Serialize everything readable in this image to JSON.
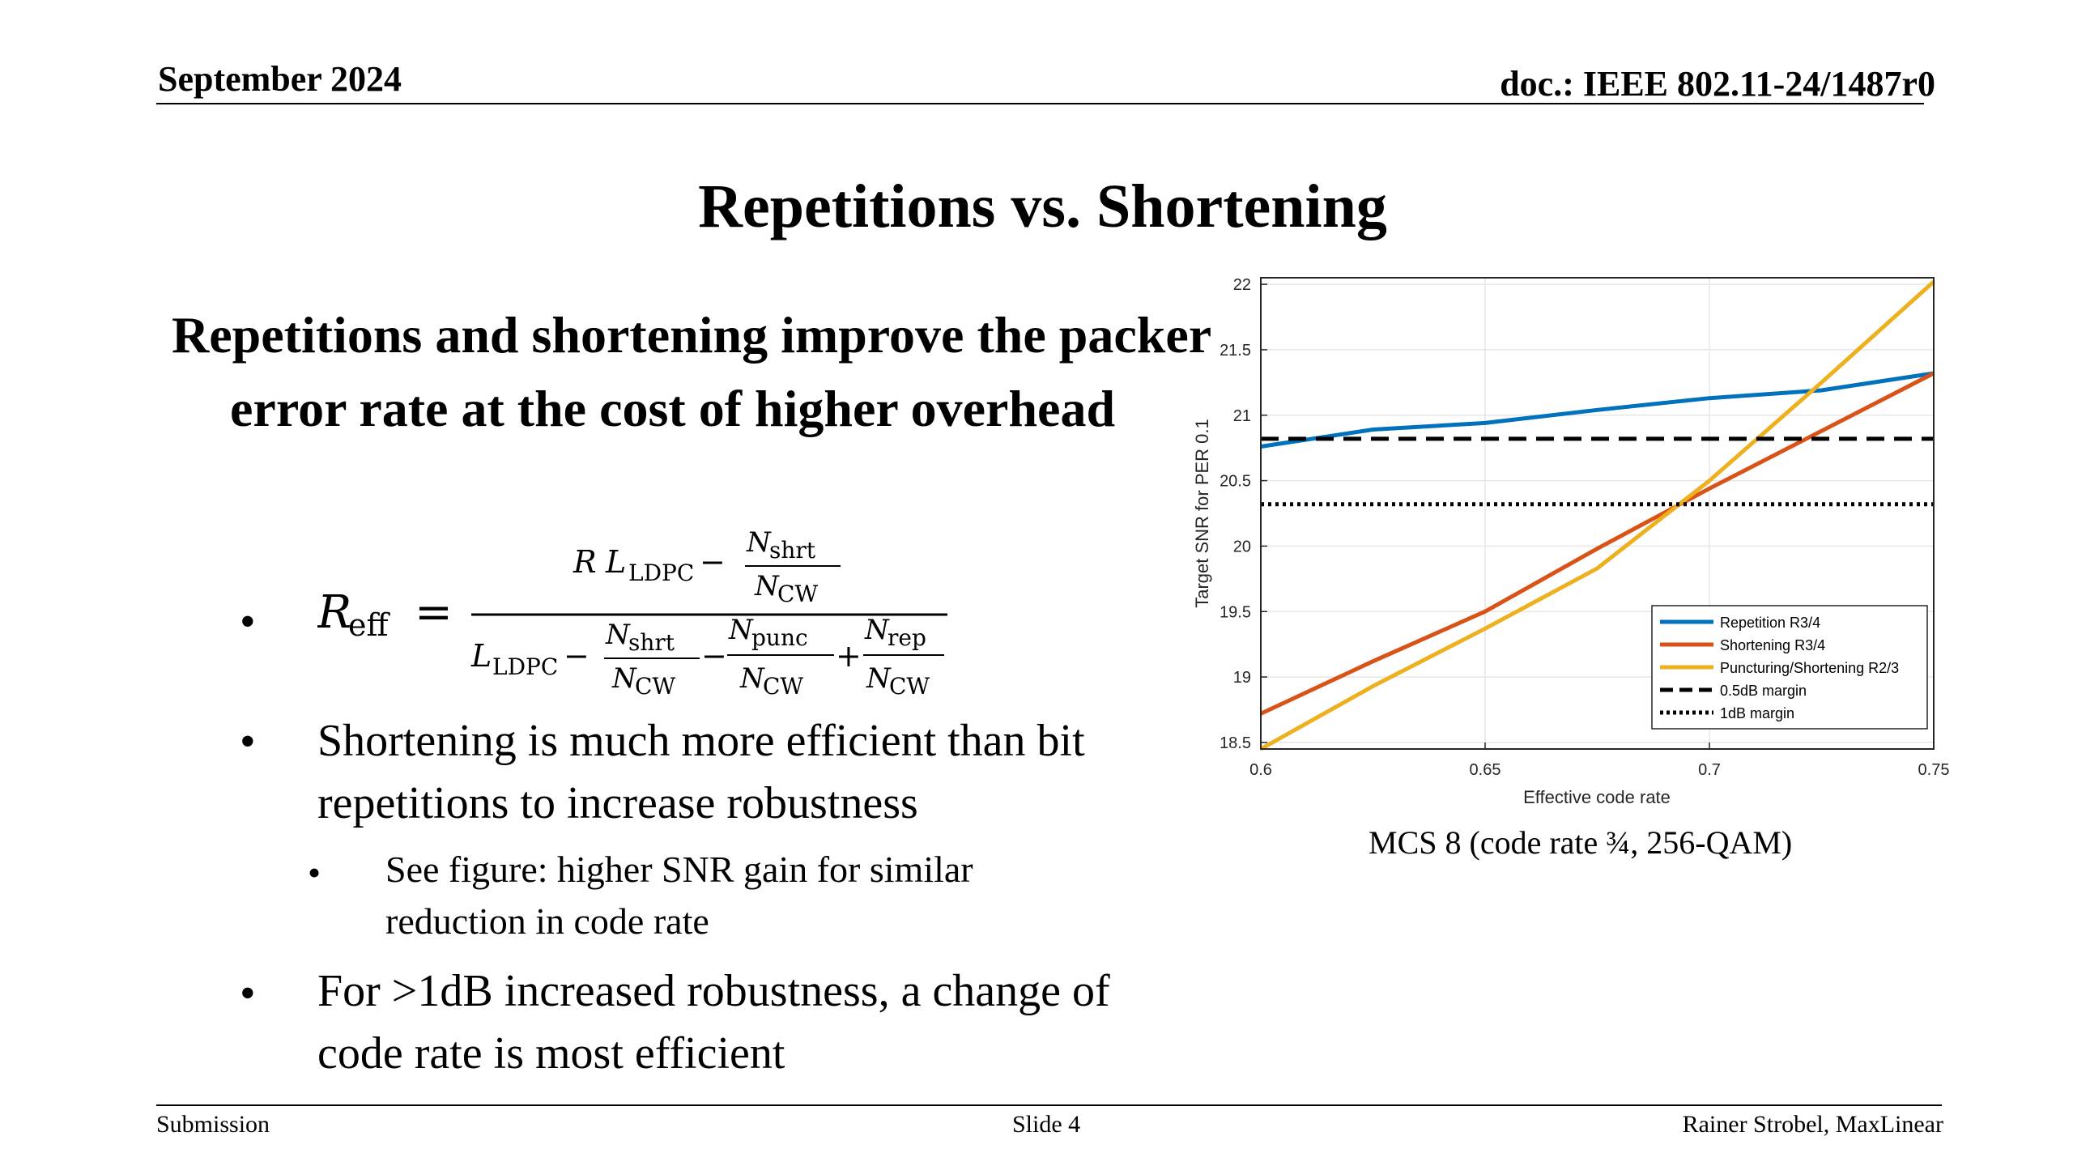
{
  "header": {
    "date": "September 2024",
    "doc": "doc.: IEEE 802.11-24/1487r0"
  },
  "slide": {
    "title": "Repetitions vs. Shortening",
    "heading": "Repetitions and shortening improve the packer error rate at the cost of higher overhead",
    "bullet_symbol": "•",
    "bullets": [
      "Shortening is much more efficient than bit repetitions to increase robustness",
      "For >1dB increased robustness, a change of code rate is most efficient"
    ],
    "sub_bullets": [
      "See figure: higher SNR gain for similar reduction in code rate"
    ],
    "formula": {
      "lhs_symbol": "R",
      "lhs_sub": "eff",
      "equals": "=",
      "num_R": "R",
      "L": "L",
      "ldpc_sub": "LDPC",
      "N": "N",
      "shrt_sub": "shrt",
      "punc_sub": "punc",
      "rep_sub": "rep",
      "cw_sub": "CW",
      "minus": "−",
      "plus": "+"
    },
    "caption": "MCS 8 (code rate ¾, 256-QAM)"
  },
  "footer": {
    "left": "Submission",
    "center": "Slide 4",
    "right": "Rainer Strobel, MaxLinear"
  },
  "chart_data": {
    "type": "line",
    "xlabel": "Effective code rate",
    "ylabel": "Target SNR for PER 0.1",
    "xlim": [
      0.6,
      0.75
    ],
    "ylim": [
      18.45,
      22.05
    ],
    "xticks": [
      0.6,
      0.65,
      0.7,
      0.75
    ],
    "xtick_labels": [
      "0.6",
      "0.65",
      "0.7",
      "0.75"
    ],
    "yticks": [
      18.5,
      19,
      19.5,
      20,
      20.5,
      21,
      21.5,
      22
    ],
    "ytick_labels": [
      "18.5",
      "19",
      "19.5",
      "20",
      "20.5",
      "21",
      "21.5",
      "22"
    ],
    "grid": true,
    "legend_position": "bottom-right",
    "series": [
      {
        "name": "Repetition R3/4",
        "color": "#0072BD",
        "dash": "solid",
        "x": [
          0.6,
          0.625,
          0.65,
          0.675,
          0.7,
          0.725,
          0.75
        ],
        "y": [
          20.76,
          20.89,
          20.94,
          21.04,
          21.13,
          21.19,
          21.32
        ]
      },
      {
        "name": "Shortening R3/4",
        "color": "#D95319",
        "dash": "solid",
        "x": [
          0.6,
          0.625,
          0.65,
          0.675,
          0.7,
          0.725,
          0.75
        ],
        "y": [
          18.72,
          19.12,
          19.5,
          19.98,
          20.44,
          20.88,
          21.32
        ]
      },
      {
        "name": "Puncturing/Shortening R2/3",
        "color": "#EDB120",
        "dash": "solid",
        "x": [
          0.6,
          0.625,
          0.65,
          0.675,
          0.7,
          0.725,
          0.75
        ],
        "y": [
          18.45,
          18.93,
          19.37,
          19.83,
          20.5,
          21.25,
          22.02
        ]
      },
      {
        "name": "0.5dB margin",
        "color": "#000000",
        "dash": "dashed",
        "x": [
          0.6,
          0.75
        ],
        "y": [
          20.82,
          20.82
        ]
      },
      {
        "name": "1dB margin",
        "color": "#000000",
        "dash": "dotted",
        "x": [
          0.6,
          0.75
        ],
        "y": [
          20.32,
          20.32
        ]
      }
    ]
  }
}
